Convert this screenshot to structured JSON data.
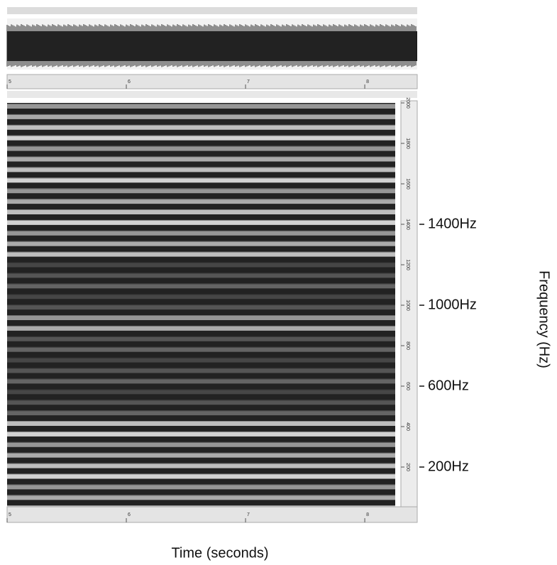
{
  "chart_data": {
    "type": "spectrogram",
    "xlabel": "Time (seconds)",
    "ylabel": "Frequency (Hz)",
    "xlim": [
      5,
      8.44
    ],
    "xticks": [
      5,
      6,
      7,
      8
    ],
    "ylim": [
      0,
      2000
    ],
    "yticks": [
      200,
      400,
      600,
      800,
      1000,
      1200,
      1400,
      1600,
      1800,
      2000
    ],
    "annotations": [
      {
        "value": 1400,
        "label": "1400Hz"
      },
      {
        "value": 1000,
        "label": "1000Hz"
      },
      {
        "value": 600,
        "label": "600Hz"
      },
      {
        "value": 200,
        "label": "200Hz"
      }
    ]
  }
}
